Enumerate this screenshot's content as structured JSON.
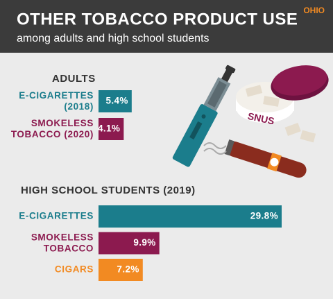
{
  "header": {
    "title": "OTHER TOBACCO PRODUCT USE",
    "subtitle": "among adults and high school students",
    "region": "OHIO"
  },
  "chart_data": [
    {
      "type": "bar",
      "orientation": "horizontal",
      "title": "ADULTS",
      "categories": [
        "E-CIGARETTES\n(2018)",
        "SMOKELESS\nTOBACCO (2020)"
      ],
      "values": [
        5.4,
        4.1
      ],
      "value_labels": [
        "5.4%",
        "4.1%"
      ],
      "colors": [
        "#1b7d8c",
        "#8c1a4f"
      ]
    },
    {
      "type": "bar",
      "orientation": "horizontal",
      "title": "HIGH SCHOOL STUDENTS (2019)",
      "categories": [
        "E-CIGARETTES",
        "SMOKELESS\nTOBACCO",
        "CIGARS"
      ],
      "values": [
        29.8,
        9.9,
        7.2
      ],
      "value_labels": [
        "29.8%",
        "9.9%",
        "7.2%"
      ],
      "colors": [
        "#1b7d8c",
        "#8c1a4f",
        "#f28a22"
      ]
    }
  ]
}
